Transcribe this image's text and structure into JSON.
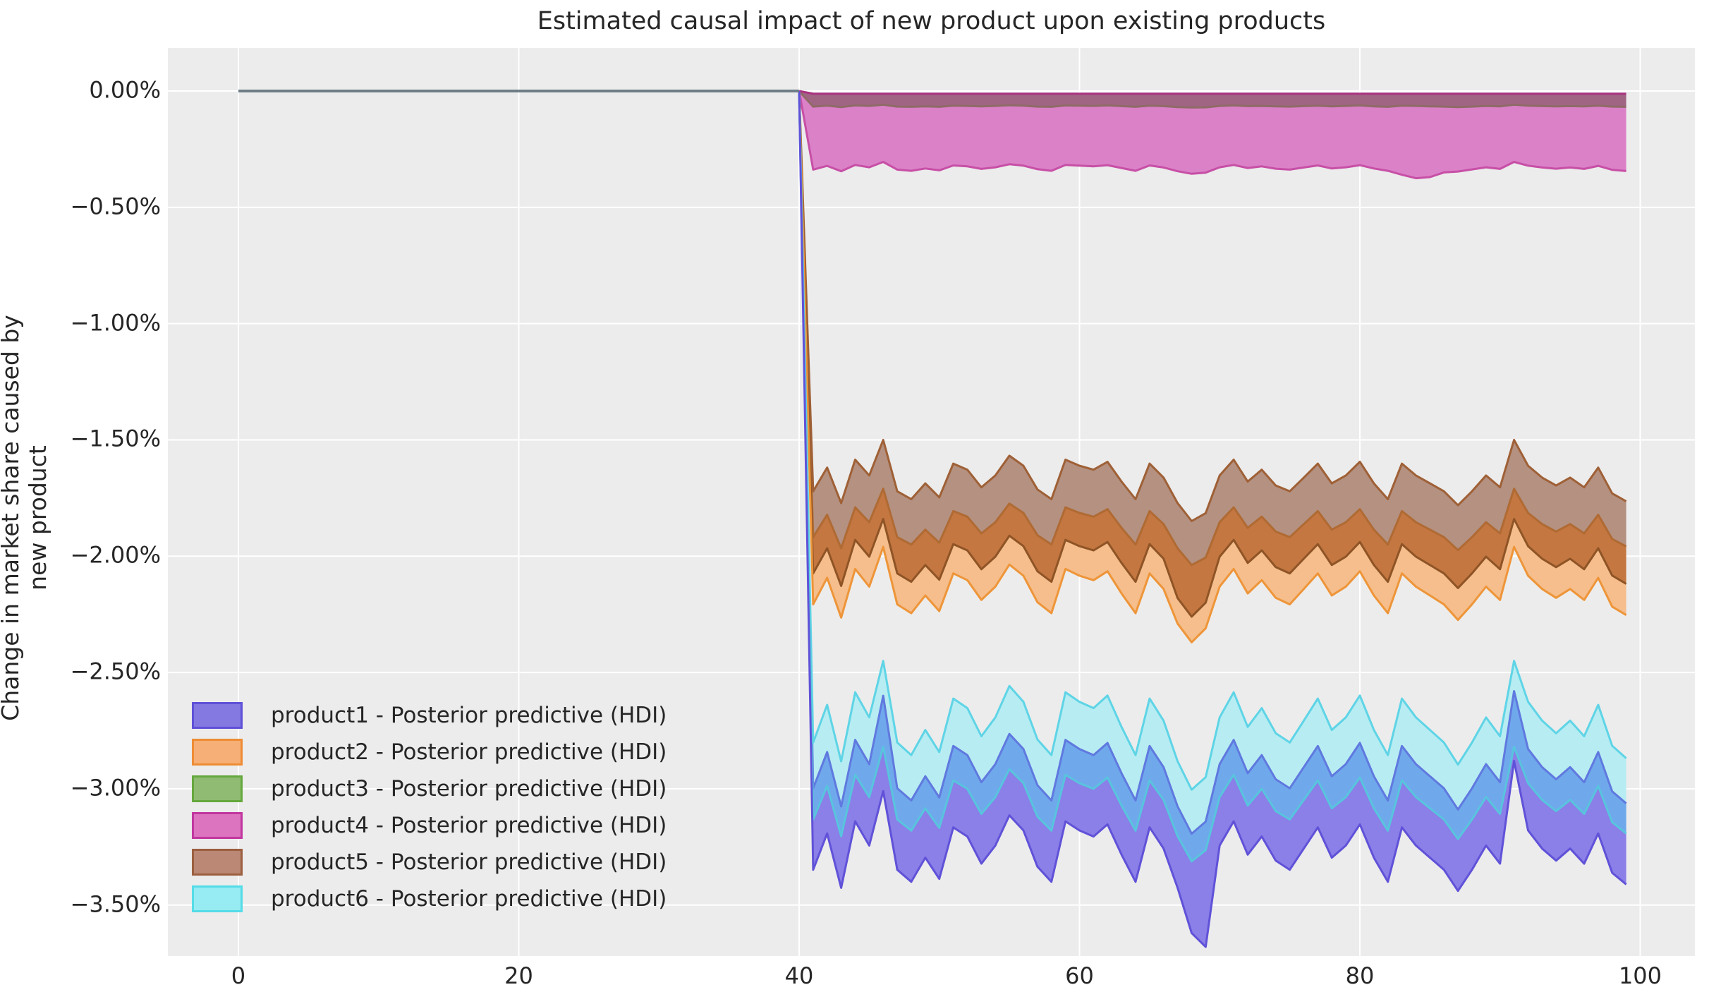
{
  "title": "Estimated causal impact of new product upon existing products",
  "chart_data": {
    "type": "area",
    "title": "Estimated causal impact of new product upon existing products",
    "xlabel": "",
    "ylabel": "Change in market share caused by new product",
    "xlim": [
      -5.03,
      103.9
    ],
    "ylim": [
      -3.719,
      0.185
    ],
    "grid": true,
    "background_color": "#ECECEC",
    "gridline_color": "#FFFFFF",
    "x_ticks": {
      "values": [
        0,
        20,
        40,
        60,
        80,
        100
      ],
      "labels": [
        "0",
        "20",
        "40",
        "60",
        "80",
        "100"
      ]
    },
    "y_ticks": {
      "values": [
        0,
        -0.5,
        -1.0,
        -1.5,
        -2.0,
        -2.5,
        -3.0,
        -3.5
      ],
      "labels": [
        "0.00%",
        "−0.50%",
        "−1.00%",
        "−1.50%",
        "−2.00%",
        "−2.50%",
        "−3.00%",
        "−3.50%"
      ]
    },
    "intervention_x": 40,
    "pre_period_line": {
      "x": [
        0,
        40
      ],
      "y": [
        0,
        0
      ],
      "color": "#6F7E88",
      "width": 4
    },
    "series": [
      {
        "name": "product1",
        "legend_label": "product1 - Posterior predictive (HDI)",
        "hdi_top_curve": "purple_top",
        "hdi_bottom_curve": "purple_bot"
      },
      {
        "name": "product2",
        "legend_label": "product2 - Posterior predictive (HDI)",
        "hdi_top_curve": "orange_top",
        "hdi_bottom_curve": "orange_bot"
      },
      {
        "name": "product3",
        "legend_label": "product3 - Posterior predictive (HDI)",
        "hdi_top_curve": "green_top",
        "hdi_bottom_curve": "green_bot"
      },
      {
        "name": "product4",
        "legend_label": "product4 - Posterior predictive (HDI)",
        "hdi_top_curve": "pink_top",
        "hdi_bottom_curve": "pink_bot"
      },
      {
        "name": "product5",
        "legend_label": "product5 - Posterior predictive (HDI)",
        "hdi_top_curve": "brown_top",
        "hdi_bottom_curve": "brown_bot"
      },
      {
        "name": "product6",
        "legend_label": "product6 - Posterior predictive (HDI)",
        "hdi_top_curve": "cyan_top",
        "hdi_bottom_curve": "cyan_bot"
      }
    ],
    "x": [
      40,
      41,
      42,
      43,
      44,
      45,
      46,
      47,
      48,
      49,
      50,
      51,
      52,
      53,
      54,
      55,
      56,
      57,
      58,
      59,
      60,
      61,
      62,
      63,
      64,
      65,
      66,
      67,
      68,
      69,
      70,
      71,
      72,
      73,
      74,
      75,
      76,
      77,
      78,
      79,
      80,
      81,
      82,
      83,
      84,
      85,
      86,
      87,
      88,
      89,
      90,
      91,
      92,
      93,
      94,
      95,
      96,
      97,
      98,
      99
    ],
    "curves": {
      "pink_top": [
        0,
        -0.012,
        -0.012,
        -0.012,
        -0.012,
        -0.012,
        -0.012,
        -0.012,
        -0.012,
        -0.012,
        -0.012,
        -0.012,
        -0.012,
        -0.012,
        -0.012,
        -0.012,
        -0.012,
        -0.012,
        -0.012,
        -0.012,
        -0.012,
        -0.012,
        -0.012,
        -0.012,
        -0.012,
        -0.012,
        -0.012,
        -0.012,
        -0.012,
        -0.012,
        -0.012,
        -0.012,
        -0.012,
        -0.012,
        -0.012,
        -0.012,
        -0.012,
        -0.012,
        -0.012,
        -0.012,
        -0.012,
        -0.012,
        -0.012,
        -0.012,
        -0.012,
        -0.012,
        -0.012,
        -0.012,
        -0.012,
        -0.012,
        -0.012,
        -0.012,
        -0.012,
        -0.012,
        -0.012,
        -0.012,
        -0.012,
        -0.012,
        -0.012,
        -0.012
      ],
      "green_top": [
        0,
        -0.01,
        -0.01,
        -0.01,
        -0.01,
        -0.01,
        -0.01,
        -0.01,
        -0.01,
        -0.01,
        -0.01,
        -0.01,
        -0.01,
        -0.01,
        -0.01,
        -0.01,
        -0.01,
        -0.01,
        -0.01,
        -0.01,
        -0.01,
        -0.01,
        -0.01,
        -0.01,
        -0.01,
        -0.01,
        -0.01,
        -0.01,
        -0.01,
        -0.01,
        -0.01,
        -0.01,
        -0.01,
        -0.01,
        -0.01,
        -0.01,
        -0.01,
        -0.01,
        -0.01,
        -0.01,
        -0.01,
        -0.01,
        -0.01,
        -0.01,
        -0.01,
        -0.01,
        -0.01,
        -0.01,
        -0.01,
        -0.01,
        -0.01,
        -0.01,
        -0.01,
        -0.01,
        -0.01,
        -0.01,
        -0.01,
        -0.01,
        -0.01,
        -0.01
      ],
      "green_bot": [
        0,
        -0.067,
        -0.063,
        -0.069,
        -0.062,
        -0.064,
        -0.059,
        -0.067,
        -0.068,
        -0.066,
        -0.068,
        -0.063,
        -0.064,
        -0.066,
        -0.064,
        -0.061,
        -0.063,
        -0.067,
        -0.068,
        -0.062,
        -0.063,
        -0.064,
        -0.062,
        -0.065,
        -0.068,
        -0.063,
        -0.065,
        -0.069,
        -0.071,
        -0.07,
        -0.064,
        -0.062,
        -0.065,
        -0.064,
        -0.066,
        -0.067,
        -0.065,
        -0.063,
        -0.066,
        -0.064,
        -0.062,
        -0.066,
        -0.068,
        -0.063,
        -0.064,
        -0.066,
        -0.067,
        -0.069,
        -0.067,
        -0.064,
        -0.066,
        -0.059,
        -0.063,
        -0.065,
        -0.066,
        -0.065,
        -0.066,
        -0.063,
        -0.067,
        -0.068
      ],
      "pink_bot": [
        0,
        -0.338,
        -0.322,
        -0.345,
        -0.318,
        -0.328,
        -0.305,
        -0.338,
        -0.343,
        -0.333,
        -0.341,
        -0.32,
        -0.324,
        -0.335,
        -0.328,
        -0.315,
        -0.321,
        -0.336,
        -0.343,
        -0.318,
        -0.321,
        -0.324,
        -0.319,
        -0.331,
        -0.343,
        -0.32,
        -0.329,
        -0.345,
        -0.356,
        -0.351,
        -0.328,
        -0.318,
        -0.331,
        -0.324,
        -0.334,
        -0.338,
        -0.329,
        -0.32,
        -0.333,
        -0.328,
        -0.319,
        -0.333,
        -0.343,
        -0.36,
        -0.375,
        -0.37,
        -0.35,
        -0.346,
        -0.337,
        -0.328,
        -0.335,
        -0.305,
        -0.321,
        -0.329,
        -0.334,
        -0.329,
        -0.335,
        -0.322,
        -0.339,
        -0.344
      ],
      "brown_top": [
        0,
        -1.721,
        -1.619,
        -1.772,
        -1.585,
        -1.653,
        -1.5,
        -1.721,
        -1.755,
        -1.687,
        -1.747,
        -1.602,
        -1.628,
        -1.704,
        -1.653,
        -1.568,
        -1.611,
        -1.713,
        -1.755,
        -1.585,
        -1.611,
        -1.628,
        -1.594,
        -1.679,
        -1.755,
        -1.602,
        -1.662,
        -1.772,
        -1.849,
        -1.815,
        -1.653,
        -1.585,
        -1.679,
        -1.628,
        -1.696,
        -1.721,
        -1.662,
        -1.602,
        -1.687,
        -1.653,
        -1.594,
        -1.687,
        -1.755,
        -1.602,
        -1.653,
        -1.687,
        -1.721,
        -1.781,
        -1.721,
        -1.653,
        -1.704,
        -1.5,
        -1.611,
        -1.662,
        -1.696,
        -1.662,
        -1.704,
        -1.619,
        -1.73,
        -1.764
      ],
      "orange_top": [
        0,
        -1.918,
        -1.822,
        -1.966,
        -1.79,
        -1.854,
        -1.71,
        -1.918,
        -1.95,
        -1.886,
        -1.942,
        -1.806,
        -1.83,
        -1.902,
        -1.854,
        -1.774,
        -1.814,
        -1.91,
        -1.95,
        -1.79,
        -1.814,
        -1.83,
        -1.798,
        -1.878,
        -1.95,
        -1.806,
        -1.862,
        -1.966,
        -2.038,
        -2.006,
        -1.854,
        -1.79,
        -1.878,
        -1.83,
        -1.894,
        -1.918,
        -1.862,
        -1.806,
        -1.886,
        -1.854,
        -1.798,
        -1.886,
        -1.95,
        -1.806,
        -1.854,
        -1.886,
        -1.918,
        -1.974,
        -1.918,
        -1.854,
        -1.902,
        -1.71,
        -1.814,
        -1.862,
        -1.894,
        -1.862,
        -1.902,
        -1.822,
        -1.926,
        -1.958
      ],
      "brown_bot": [
        0,
        -2.074,
        -1.966,
        -2.128,
        -1.93,
        -2.002,
        -1.84,
        -2.074,
        -2.11,
        -2.038,
        -2.101,
        -1.948,
        -1.975,
        -2.056,
        -2.002,
        -1.912,
        -1.957,
        -2.065,
        -2.11,
        -1.93,
        -1.957,
        -1.975,
        -1.939,
        -2.029,
        -2.11,
        -1.948,
        -2.011,
        -2.18,
        -2.26,
        -2.2,
        -2.002,
        -1.93,
        -2.029,
        -1.975,
        -2.047,
        -2.074,
        -2.011,
        -1.948,
        -2.038,
        -2.002,
        -1.939,
        -2.038,
        -2.11,
        -1.948,
        -2.002,
        -2.038,
        -2.074,
        -2.137,
        -2.074,
        -2.002,
        -2.056,
        -1.84,
        -1.957,
        -2.011,
        -2.047,
        -2.011,
        -2.056,
        -1.966,
        -2.083,
        -2.119
      ],
      "orange_bot": [
        0,
        -2.207,
        -2.093,
        -2.264,
        -2.055,
        -2.131,
        -1.96,
        -2.207,
        -2.245,
        -2.169,
        -2.236,
        -2.074,
        -2.103,
        -2.188,
        -2.131,
        -2.036,
        -2.084,
        -2.198,
        -2.245,
        -2.055,
        -2.084,
        -2.103,
        -2.065,
        -2.16,
        -2.245,
        -2.074,
        -2.141,
        -2.29,
        -2.37,
        -2.31,
        -2.131,
        -2.055,
        -2.16,
        -2.103,
        -2.179,
        -2.207,
        -2.141,
        -2.074,
        -2.169,
        -2.131,
        -2.065,
        -2.169,
        -2.245,
        -2.074,
        -2.131,
        -2.169,
        -2.207,
        -2.274,
        -2.207,
        -2.131,
        -2.188,
        -1.96,
        -2.084,
        -2.141,
        -2.179,
        -2.141,
        -2.188,
        -2.093,
        -2.217,
        -2.253
      ],
      "cyan_top": [
        0,
        -2.801,
        -2.639,
        -2.882,
        -2.585,
        -2.693,
        -2.45,
        -2.801,
        -2.855,
        -2.747,
        -2.842,
        -2.612,
        -2.653,
        -2.774,
        -2.693,
        -2.558,
        -2.626,
        -2.788,
        -2.855,
        -2.585,
        -2.626,
        -2.653,
        -2.599,
        -2.734,
        -2.855,
        -2.612,
        -2.707,
        -2.882,
        -3.004,
        -2.95,
        -2.693,
        -2.585,
        -2.734,
        -2.653,
        -2.761,
        -2.801,
        -2.707,
        -2.612,
        -2.747,
        -2.693,
        -2.599,
        -2.747,
        -2.855,
        -2.612,
        -2.693,
        -2.747,
        -2.801,
        -2.896,
        -2.801,
        -2.693,
        -2.774,
        -2.45,
        -2.626,
        -2.707,
        -2.761,
        -2.707,
        -2.774,
        -2.639,
        -2.815,
        -2.869
      ],
      "purple_top": [
        0,
        -2.998,
        -2.842,
        -3.076,
        -2.79,
        -2.894,
        -2.6,
        -2.998,
        -3.05,
        -2.946,
        -3.037,
        -2.816,
        -2.855,
        -2.972,
        -2.894,
        -2.764,
        -2.829,
        -2.985,
        -3.05,
        -2.79,
        -2.829,
        -2.855,
        -2.803,
        -2.933,
        -3.05,
        -2.816,
        -2.907,
        -3.076,
        -3.193,
        -3.141,
        -2.894,
        -2.79,
        -2.933,
        -2.855,
        -2.959,
        -2.998,
        -2.907,
        -2.816,
        -2.946,
        -2.894,
        -2.803,
        -2.946,
        -3.05,
        -2.816,
        -2.894,
        -2.946,
        -2.998,
        -3.089,
        -2.998,
        -2.894,
        -2.972,
        -2.58,
        -2.829,
        -2.907,
        -2.959,
        -2.907,
        -2.972,
        -2.842,
        -3.011,
        -3.063
      ],
      "cyan_bot": [
        0,
        -3.132,
        -2.988,
        -3.204,
        -2.94,
        -3.036,
        -2.82,
        -3.132,
        -3.18,
        -3.084,
        -3.168,
        -2.964,
        -3.0,
        -3.108,
        -3.036,
        -2.916,
        -2.976,
        -3.12,
        -3.18,
        -2.94,
        -2.976,
        -3.0,
        -2.952,
        -3.072,
        -3.18,
        -2.964,
        -3.048,
        -3.204,
        -3.312,
        -3.264,
        -3.036,
        -2.94,
        -3.072,
        -3.0,
        -3.096,
        -3.132,
        -3.048,
        -2.964,
        -3.084,
        -3.036,
        -2.952,
        -3.084,
        -3.18,
        -2.964,
        -3.036,
        -3.084,
        -3.132,
        -3.216,
        -3.132,
        -3.036,
        -3.108,
        -2.82,
        -2.976,
        -3.048,
        -3.096,
        -3.048,
        -3.108,
        -2.988,
        -3.144,
        -3.192
      ],
      "purple_bot": [
        0,
        -3.348,
        -3.192,
        -3.426,
        -3.14,
        -3.244,
        -3.01,
        -3.348,
        -3.4,
        -3.296,
        -3.387,
        -3.166,
        -3.205,
        -3.322,
        -3.244,
        -3.114,
        -3.179,
        -3.335,
        -3.4,
        -3.14,
        -3.179,
        -3.205,
        -3.153,
        -3.283,
        -3.4,
        -3.166,
        -3.257,
        -3.426,
        -3.62,
        -3.68,
        -3.244,
        -3.14,
        -3.283,
        -3.205,
        -3.309,
        -3.348,
        -3.257,
        -3.166,
        -3.296,
        -3.244,
        -3.153,
        -3.296,
        -3.4,
        -3.166,
        -3.244,
        -3.296,
        -3.348,
        -3.439,
        -3.348,
        -3.244,
        -3.322,
        -2.88,
        -3.179,
        -3.257,
        -3.309,
        -3.257,
        -3.322,
        -3.192,
        -3.361,
        -3.411
      ]
    },
    "regions": [
      {
        "name": "product3-product4-overlap-band",
        "top": "pink_top",
        "bottom": "green_bot",
        "fill": "#A06583"
      },
      {
        "name": "product4-band",
        "top": "green_bot",
        "bottom": "pink_bot",
        "fill": "#DB81C8"
      },
      {
        "name": "product5-band",
        "top": "brown_top",
        "bottom": "orange_top",
        "fill": "#B49181"
      },
      {
        "name": "product5-product2-overlap-band",
        "top": "orange_top",
        "bottom": "brown_bot",
        "fill": "#C47741"
      },
      {
        "name": "product2-band",
        "top": "brown_bot",
        "bottom": "orange_bot",
        "fill": "#F5BE8C"
      },
      {
        "name": "product6-band",
        "top": "cyan_top",
        "bottom": "purple_top",
        "fill": "#B7EDF2"
      },
      {
        "name": "product6-product1-overlap-band",
        "top": "purple_top",
        "bottom": "cyan_bot",
        "fill": "#6FA9EC"
      },
      {
        "name": "product1-band",
        "top": "cyan_bot",
        "bottom": "purple_bot",
        "fill": "#8B7FE8"
      }
    ],
    "edges": [
      {
        "curve": "green_bot",
        "color": "#8F6B67"
      },
      {
        "curve": "pink_top",
        "color": "#AA3380"
      },
      {
        "curve": "pink_bot",
        "color": "#C74FA6"
      },
      {
        "curve": "orange_top",
        "color": "#B06A33"
      },
      {
        "curve": "brown_top",
        "color": "#9F6036"
      },
      {
        "curve": "brown_bot",
        "color": "#8F5426"
      },
      {
        "curve": "orange_bot",
        "color": "#EE9539"
      },
      {
        "curve": "purple_top",
        "color": "#6079DF"
      },
      {
        "curve": "cyan_top",
        "color": "#5FD4E6"
      },
      {
        "curve": "cyan_bot",
        "color": "#58C4DD"
      },
      {
        "curve": "purple_bot",
        "color": "#6052D8"
      }
    ],
    "legend": {
      "position": "lower left",
      "entries": [
        {
          "label": "product1 - Posterior predictive (HDI)",
          "fill": "#8379E1",
          "edge": "#5F51D8"
        },
        {
          "label": "product2 - Posterior predictive (HDI)",
          "fill": "#F6AF77",
          "edge": "#EE8C35"
        },
        {
          "label": "product3 - Posterior predictive (HDI)",
          "fill": "#8FBC72",
          "edge": "#65A83E"
        },
        {
          "label": "product4 - Posterior predictive (HDI)",
          "fill": "#DD74C0",
          "edge": "#C2379F"
        },
        {
          "label": "product5 - Posterior predictive (HDI)",
          "fill": "#BB8875",
          "edge": "#9C5F3F"
        },
        {
          "label": "product6 - Posterior predictive (HDI)",
          "fill": "#97EBF2",
          "edge": "#54DCE8"
        }
      ]
    }
  }
}
